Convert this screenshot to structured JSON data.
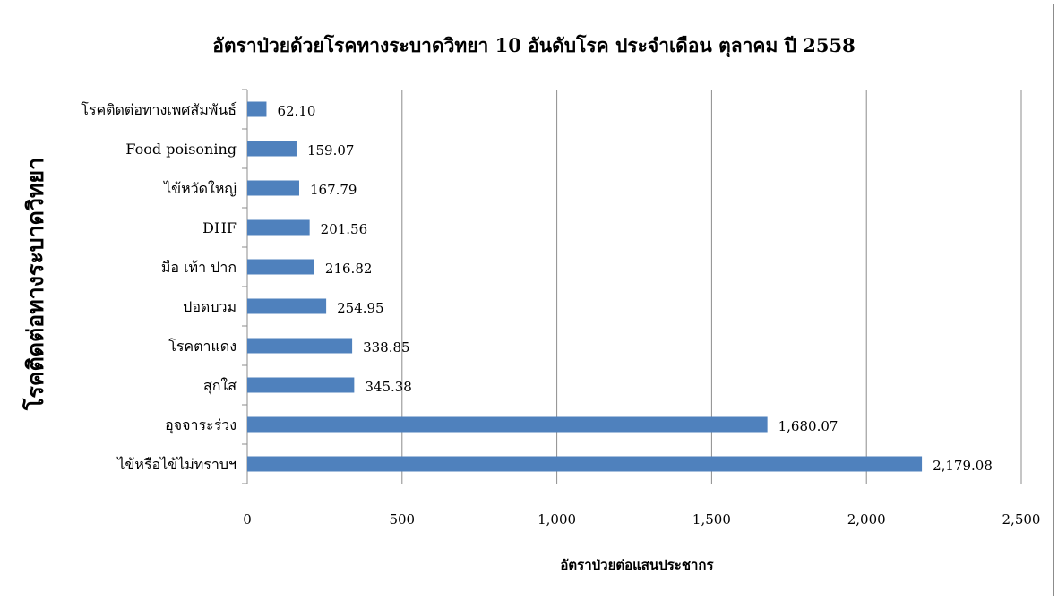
{
  "chart_data": {
    "type": "bar",
    "orientation": "horizontal",
    "title": "อัตราป่วยด้วยโรคทางระบาดวิทยา 10 อันดับโรค ประจำเดือน ตุลาคม ปี 2558",
    "xlabel": "อัตราป่วยต่อแสนประชากร",
    "ylabel": "โรคติดต่อทางระบาดวิทยา",
    "categories": [
      "โรคติดต่อทางเพศสัมพันธ์",
      "Food poisoning",
      "ไข้หวัดใหญ่",
      "DHF",
      "มือ เท้า ปาก",
      "ปอดบวม",
      "โรคตาแดง",
      "สุกใส",
      "อุจจาระร่วง",
      "ไข้หรือไข้ไม่ทราบฯ"
    ],
    "values": [
      62.1,
      159.07,
      167.79,
      201.56,
      216.82,
      254.95,
      338.85,
      345.38,
      1680.07,
      2179.08
    ],
    "value_labels": [
      "62.10",
      "159.07",
      "167.79",
      "201.56",
      "216.82",
      "254.95",
      "338.85",
      "345.38",
      "1,680.07",
      "2,179.08"
    ],
    "xlim": [
      0,
      2500
    ],
    "xticks": [
      0,
      500,
      1000,
      1500,
      2000,
      2500
    ],
    "xtick_labels": [
      "0",
      "500",
      "1,000",
      "1,500",
      "2,000",
      "2,500"
    ],
    "grid": "vertical",
    "legend": "none",
    "bar_color": "#4f81bd",
    "grid_color": "#8c8c8c"
  }
}
